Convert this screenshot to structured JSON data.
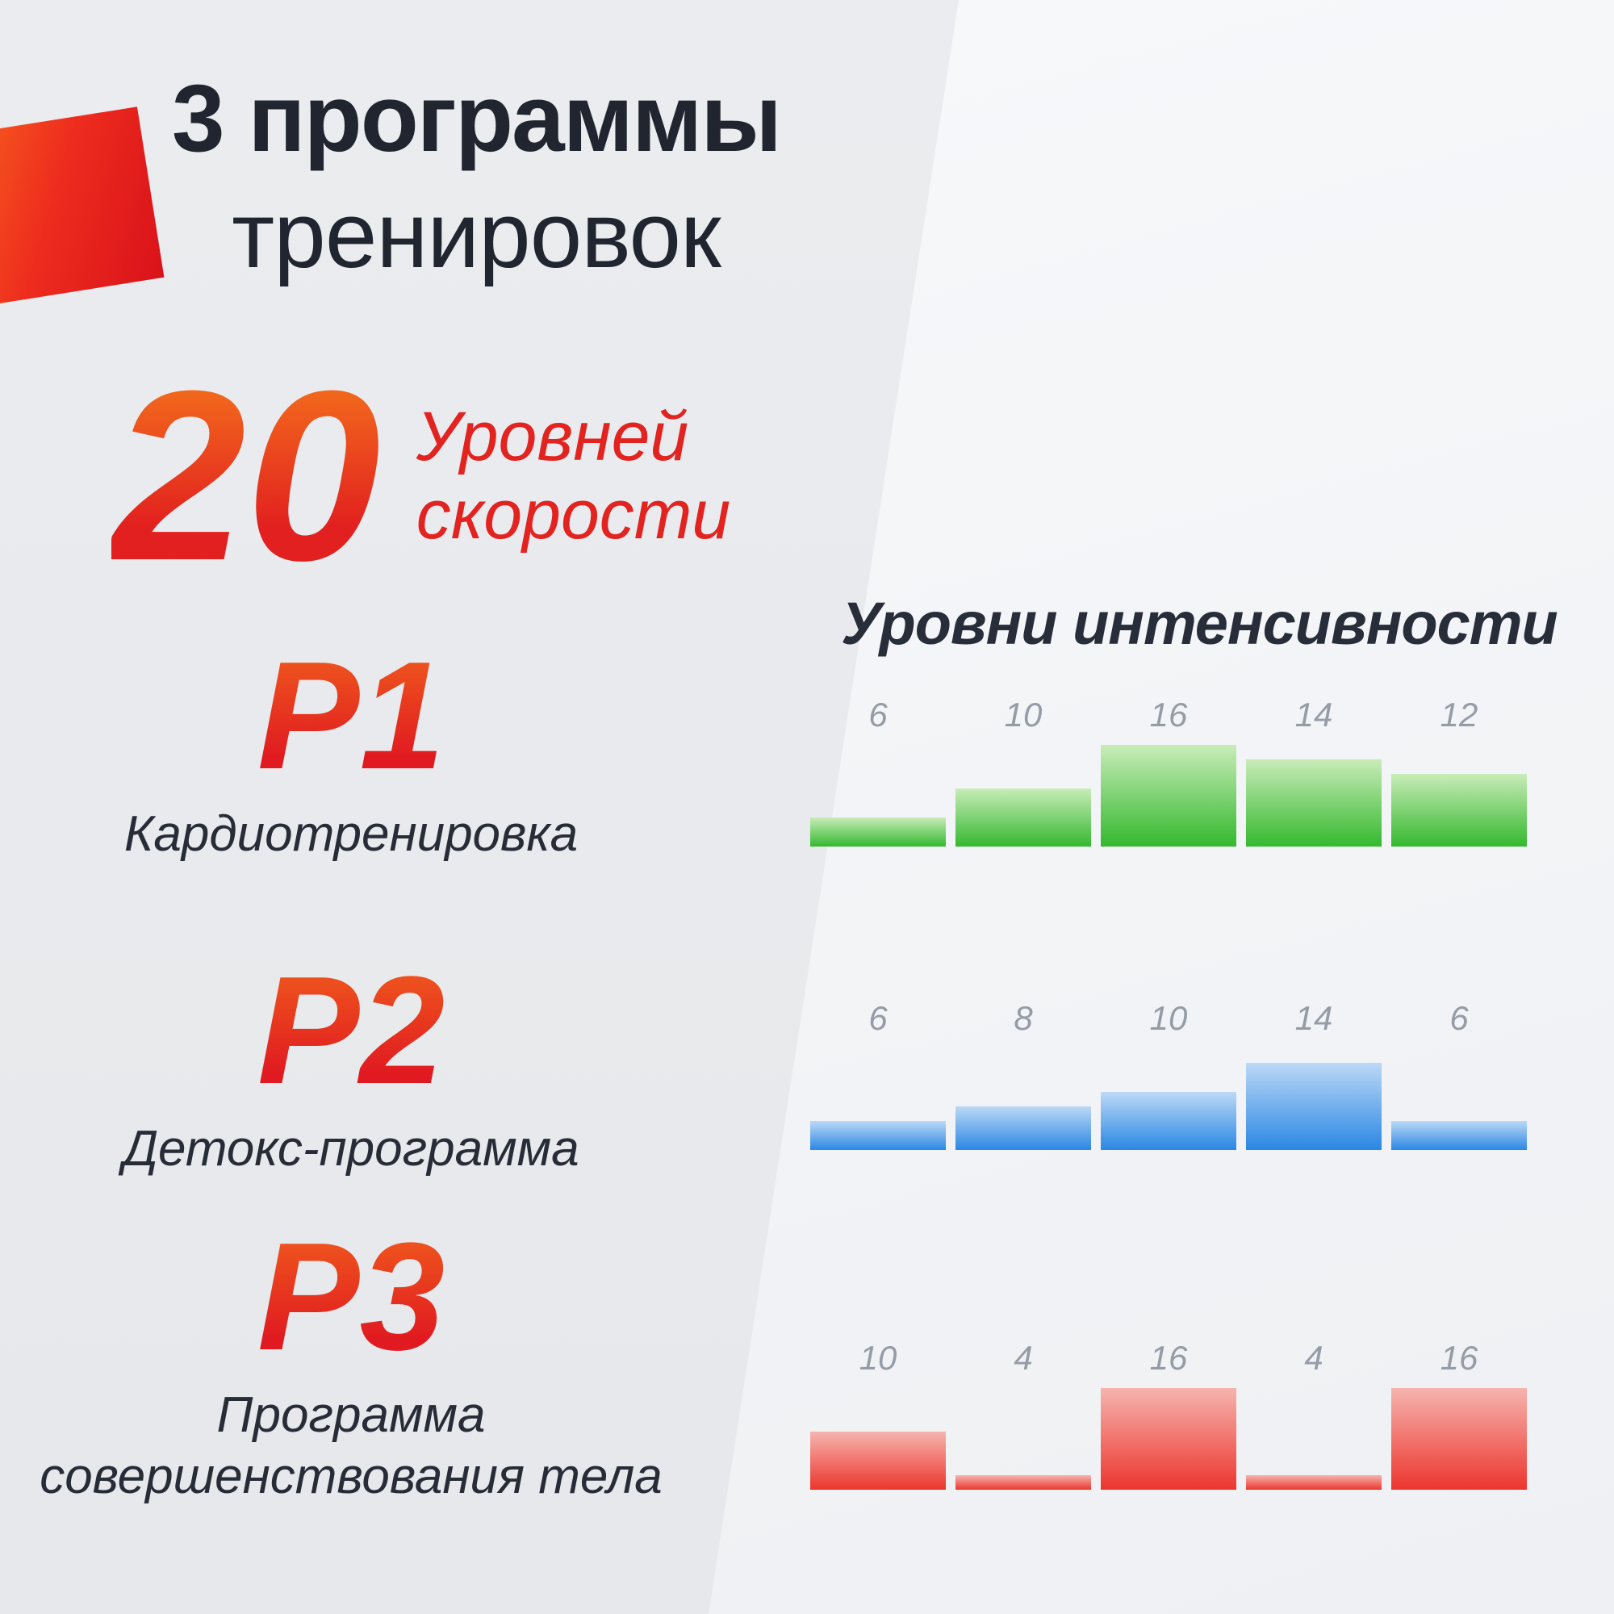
{
  "header": {
    "title_line1": "3 программы",
    "title_line2": "тренировок"
  },
  "speed": {
    "number": "20",
    "label_line1": "Уровней",
    "label_line2": "скорости"
  },
  "programs": [
    {
      "code": "P1",
      "name": "Кардиотренировка"
    },
    {
      "code": "P2",
      "name": "Детокс-программа"
    },
    {
      "code": "P3",
      "name": "Программа совершенствования тела"
    }
  ],
  "colors": {
    "accent_red": "#e2201f",
    "title_text": "#20252f",
    "bar_label_gray": "#959ca6"
  },
  "chart_data": [
    {
      "type": "bar",
      "title": "Уровни интенсивности",
      "values": [
        6,
        10,
        16,
        14,
        12
      ],
      "value_labels": [
        "6",
        "10",
        "16",
        "14",
        "12"
      ],
      "gradient_top": "#c9ecb9",
      "gradient_bottom": "#34b92e",
      "ylim": [
        0,
        16
      ],
      "grid": false,
      "legend": false
    },
    {
      "type": "bar",
      "values": [
        6,
        8,
        10,
        14,
        6
      ],
      "value_labels": [
        "6",
        "8",
        "10",
        "14",
        "6"
      ],
      "gradient_top": "#bcd9f6",
      "gradient_bottom": "#2b87e4",
      "ylim": [
        0,
        16
      ],
      "grid": false,
      "legend": false
    },
    {
      "type": "bar",
      "values": [
        10,
        4,
        16,
        4,
        16
      ],
      "value_labels": [
        "10",
        "4",
        "16",
        "4",
        "16"
      ],
      "gradient_top": "#f6b4ae",
      "gradient_bottom": "#ec362e",
      "ylim": [
        0,
        16
      ],
      "grid": false,
      "legend": false
    }
  ]
}
